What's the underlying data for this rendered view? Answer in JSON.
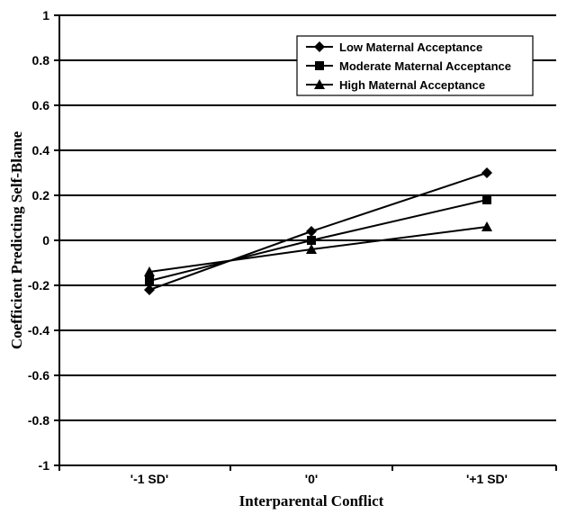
{
  "chart_data": {
    "type": "line",
    "title": "",
    "xlabel": "Interparental Conflict",
    "ylabel": "Coefficient Predicting Self-Blame",
    "categories": [
      "'-1 SD'",
      "'0'",
      "'+1 SD'"
    ],
    "ylim": [
      -1,
      1
    ],
    "yticks": [
      "1",
      "0.8",
      "0.6",
      "0.4",
      "0.2",
      "0",
      "-0.2",
      "-0.4",
      "-0.6",
      "-0.8",
      "-1"
    ],
    "ytick_values": [
      1,
      0.8,
      0.6,
      0.4,
      0.2,
      0,
      -0.2,
      -0.4,
      -0.6,
      -0.8,
      -1
    ],
    "grid": true,
    "legend_position": "top-right",
    "series": [
      {
        "name": "Low Maternal Acceptance",
        "marker": "diamond",
        "values": [
          -0.22,
          0.04,
          0.3
        ]
      },
      {
        "name": "Moderate Maternal Acceptance",
        "marker": "square",
        "values": [
          -0.18,
          0.0,
          0.18
        ]
      },
      {
        "name": "High Maternal Acceptance",
        "marker": "triangle",
        "values": [
          -0.14,
          -0.04,
          0.06
        ]
      }
    ]
  }
}
